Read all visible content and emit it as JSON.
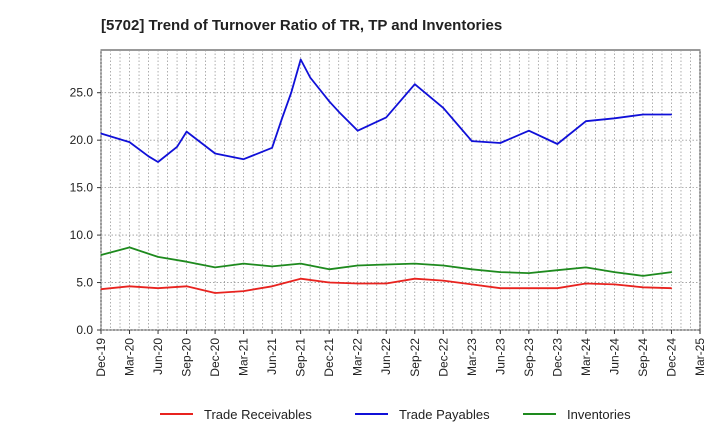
{
  "chart_data": {
    "type": "line",
    "title": "[5702]  Trend of Turnover Ratio of TR, TP and Inventories",
    "xlabel": "",
    "ylabel": "",
    "ylim": [
      0,
      29.5
    ],
    "yticks": [
      "0.0",
      "5.0",
      "10.0",
      "15.0",
      "20.0",
      "25.0"
    ],
    "ytick_values": [
      0,
      5,
      10,
      15,
      20,
      25
    ],
    "categories": [
      "Dec-19",
      "Mar-20",
      "Jun-20",
      "Sep-20",
      "Dec-20",
      "Mar-21",
      "Jun-21",
      "Sep-21",
      "Dec-21",
      "Mar-22",
      "Jun-22",
      "Sep-22",
      "Dec-22",
      "Mar-23",
      "Jun-23",
      "Sep-23",
      "Dec-23",
      "Mar-24",
      "Jun-24",
      "Sep-24",
      "Dec-24",
      "Mar-25"
    ],
    "grid": true,
    "legend_position": "bottom",
    "series": [
      {
        "name": "Trade Receivables",
        "color": "#e8231f",
        "x": [
          "Dec-19",
          "Mar-20",
          "Jun-20",
          "Sep-20",
          "Dec-20",
          "Mar-21",
          "Jun-21",
          "Sep-21",
          "Dec-21",
          "Mar-22",
          "Jun-22",
          "Sep-22",
          "Dec-22",
          "Mar-23",
          "Jun-23",
          "Sep-23",
          "Dec-23",
          "Mar-24",
          "Jun-24",
          "Sep-24",
          "Dec-24"
        ],
        "values": [
          4.3,
          4.6,
          4.4,
          4.6,
          3.9,
          4.1,
          4.6,
          5.4,
          5.0,
          4.9,
          4.9,
          5.4,
          5.2,
          4.8,
          4.4,
          4.4,
          4.4,
          4.9,
          4.8,
          4.5,
          4.4
        ]
      },
      {
        "name": "Trade Payables",
        "color": "#1010d8",
        "x": [
          "Dec-19",
          "Mar-20",
          "May-20",
          "Jun-20",
          "Aug-20",
          "Sep-20",
          "Dec-20",
          "Mar-21",
          "Jun-21",
          "Jul-21",
          "Aug-21",
          "Sep-21",
          "Oct-21",
          "Dec-21",
          "Jan-22",
          "Mar-22",
          "Jun-22",
          "Sep-22",
          "Dec-22",
          "Mar-23",
          "Jun-23",
          "Sep-23",
          "Dec-23",
          "Mar-24",
          "Jun-24",
          "Sep-24",
          "Dec-24"
        ],
        "values": [
          20.7,
          19.8,
          18.3,
          17.7,
          19.3,
          20.9,
          18.6,
          18.0,
          19.2,
          22.2,
          25.0,
          28.5,
          26.6,
          24.1,
          23.0,
          21.0,
          22.4,
          25.9,
          23.4,
          19.9,
          19.7,
          21.0,
          19.6,
          22.0,
          22.3,
          22.7,
          22.7
        ]
      },
      {
        "name": "Inventories",
        "color": "#1e8a1e",
        "x": [
          "Dec-19",
          "Mar-20",
          "Jun-20",
          "Sep-20",
          "Dec-20",
          "Mar-21",
          "Jun-21",
          "Sep-21",
          "Dec-21",
          "Mar-22",
          "Jun-22",
          "Sep-22",
          "Dec-22",
          "Mar-23",
          "Jun-23",
          "Sep-23",
          "Dec-23",
          "Mar-24",
          "Jun-24",
          "Sep-24",
          "Dec-24"
        ],
        "values": [
          7.9,
          8.7,
          7.7,
          7.2,
          6.6,
          7.0,
          6.7,
          7.0,
          6.4,
          6.8,
          6.9,
          7.0,
          6.8,
          6.4,
          6.1,
          6.0,
          6.3,
          6.6,
          6.1,
          5.7,
          6.1
        ]
      }
    ]
  }
}
